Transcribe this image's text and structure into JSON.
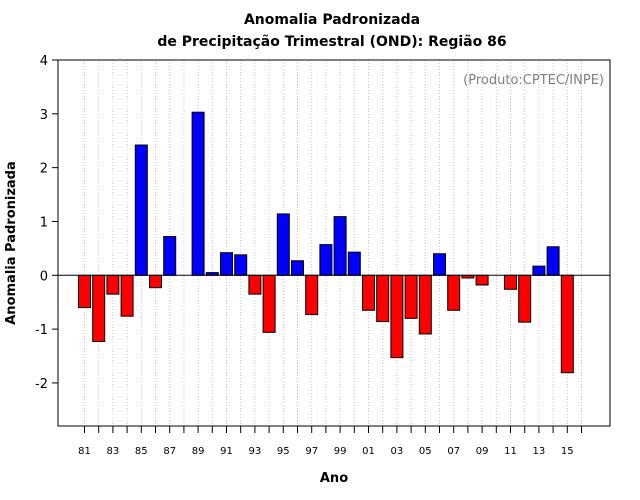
{
  "chart_data": {
    "type": "bar",
    "title_line1": "Anomalia Padronizada",
    "title_line2": "de Precipitação Trimestral (OND): Região 86",
    "xlabel": "Ano",
    "ylabel": "Anomalia Padronizada",
    "credit": "(Produto:CPTEC/INPE)",
    "ylim": [
      -2.8,
      4.0
    ],
    "yticks": [
      -2,
      -1,
      0,
      1,
      2,
      3,
      4
    ],
    "ytick_labels": [
      "-2",
      "-1",
      "0",
      "1",
      "2",
      "3",
      "4"
    ],
    "grid": "vertical dotted",
    "categories": [
      "81",
      "82",
      "83",
      "84",
      "85",
      "86",
      "87",
      "88",
      "89",
      "90",
      "91",
      "92",
      "93",
      "94",
      "95",
      "96",
      "97",
      "98",
      "99",
      "00",
      "01",
      "02",
      "03",
      "04",
      "05",
      "06",
      "07",
      "08",
      "09",
      "10",
      "11",
      "12",
      "13",
      "14",
      "15",
      "16"
    ],
    "xtick_labels": [
      "81",
      "83",
      "85",
      "87",
      "89",
      "91",
      "93",
      "95",
      "97",
      "99",
      "01",
      "03",
      "05",
      "07",
      "09",
      "11",
      "13",
      "15"
    ],
    "values": [
      -0.6,
      -1.23,
      -0.35,
      -0.76,
      2.42,
      -0.23,
      0.72,
      0.0,
      3.03,
      0.05,
      0.42,
      0.38,
      -0.35,
      -1.06,
      1.14,
      0.27,
      -0.73,
      0.57,
      1.09,
      0.43,
      -0.65,
      -0.86,
      -1.53,
      -0.8,
      -1.09,
      0.4,
      -0.65,
      -0.05,
      -0.18,
      0.0,
      -0.26,
      -0.87,
      0.17,
      0.53,
      -1.81,
      0.0
    ],
    "positive_color": "#0000ff",
    "negative_color": "#ff0000"
  }
}
